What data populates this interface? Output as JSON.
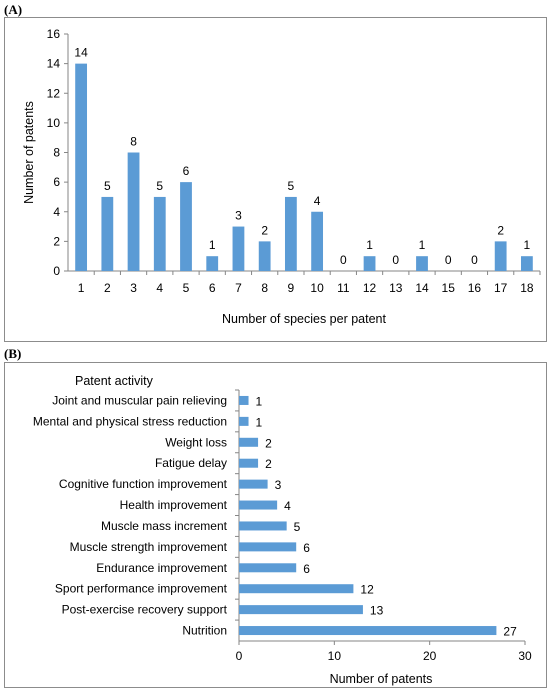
{
  "panel_a_label": "(A)",
  "panel_b_label": "(B)",
  "chart_data": [
    {
      "type": "bar",
      "orientation": "vertical",
      "xlabel": "Number of species per patent",
      "ylabel": "Number of patents",
      "categories": [
        "1",
        "2",
        "3",
        "4",
        "5",
        "6",
        "7",
        "8",
        "9",
        "10",
        "11",
        "12",
        "13",
        "14",
        "15",
        "16",
        "17",
        "18"
      ],
      "values": [
        14,
        5,
        8,
        5,
        6,
        1,
        3,
        2,
        5,
        4,
        0,
        1,
        0,
        1,
        0,
        0,
        2,
        1
      ],
      "ylim": [
        0,
        16
      ],
      "yticks": [
        0,
        2,
        4,
        6,
        8,
        10,
        12,
        14,
        16
      ],
      "data_labels": true,
      "grid": false,
      "bar_color": "#5b9bd5"
    },
    {
      "type": "bar",
      "orientation": "horizontal",
      "title": "Patent activity",
      "xlabel": "Number of patents",
      "categories": [
        "Joint and muscular pain relieving",
        "Mental and physical stress reduction",
        "Weight loss",
        "Fatigue delay",
        "Cognitive function improvement",
        "Health improvement",
        "Muscle mass increment",
        "Muscle strength improvement",
        "Endurance improvement",
        "Sport performance  improvement",
        "Post-exercise recovery support",
        "Nutrition"
      ],
      "values": [
        1,
        1,
        2,
        2,
        3,
        4,
        5,
        6,
        6,
        12,
        13,
        27
      ],
      "xlim": [
        0,
        30
      ],
      "xticks": [
        0,
        10,
        20,
        30
      ],
      "data_labels": true,
      "grid": false,
      "bar_color": "#5b9bd5"
    }
  ]
}
